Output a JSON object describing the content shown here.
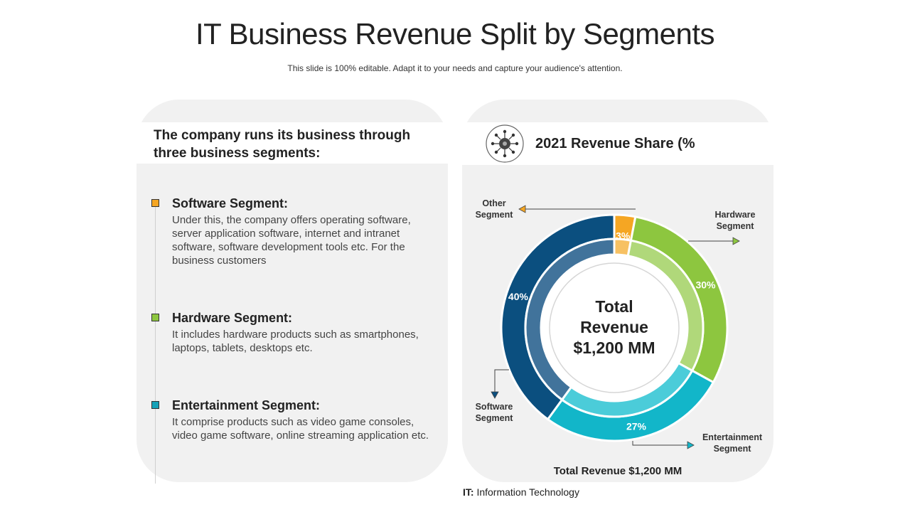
{
  "title": "IT Business Revenue Split by Segments",
  "subtitle": "This slide is 100% editable. Adapt it to your needs and capture your audience's attention.",
  "left_card": {
    "heading": "The company runs its business through three business segments:",
    "segments": [
      {
        "title": "Software Segment:",
        "description": "Under this, the company offers operating software, server application software, internet and intranet software, software development tools etc. For the business customers",
        "color": "#f5a623"
      },
      {
        "title": "Hardware Segment:",
        "description": "It includes hardware products such as smartphones, laptops, tablets, desktops etc.",
        "color": "#8dc63f"
      },
      {
        "title": "Entertainment Segment:",
        "description": "It comprise products such as video game consoles, video game software, online streaming application etc.",
        "color": "#17a2b8"
      }
    ]
  },
  "chart_data": {
    "type": "pie",
    "variant": "donut",
    "title": "2021 Revenue Share (%",
    "center_label": [
      "Total",
      "Revenue",
      "$1,200 MM"
    ],
    "slices": [
      {
        "label": "Other\nSegment",
        "value": 3,
        "data_label": "3%",
        "color": "#f5a623",
        "inner_color": "#f7c163"
      },
      {
        "label": "Hardware\nSegment",
        "value": 30,
        "data_label": "30%",
        "color": "#8dc63f",
        "inner_color": "#b0d87a"
      },
      {
        "label": "Entertainment\nSegment",
        "value": 27,
        "data_label": "27%",
        "color": "#12b6c9",
        "inner_color": "#4bccd9"
      },
      {
        "label": "Software\nSegment",
        "value": 40,
        "data_label": "40%",
        "color": "#0b4f7f",
        "inner_color": "#41739b"
      }
    ],
    "footer": "Total Revenue $1,200 MM"
  },
  "note": {
    "abbr": "IT:",
    "text": "Information Technology"
  }
}
